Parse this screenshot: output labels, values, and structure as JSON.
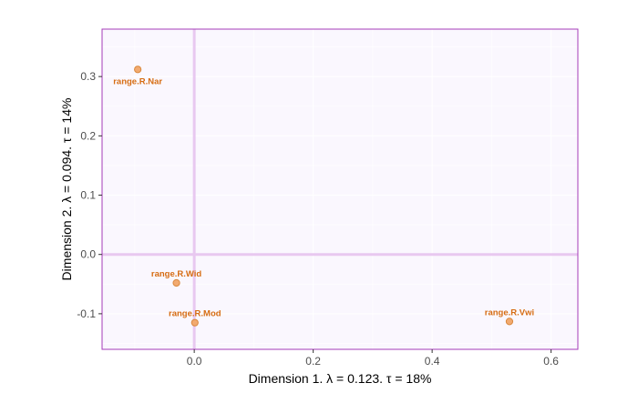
{
  "chart_data": {
    "type": "scatter",
    "xlabel": "Dimension 1.   λ = 0.123.  τ = 18%",
    "ylabel": "Dimension 2.   λ = 0.094.  τ = 14%",
    "xlim": [
      -0.155,
      0.645
    ],
    "ylim": [
      -0.16,
      0.38
    ],
    "x_ticks": [
      0.0,
      0.2,
      0.4,
      0.6
    ],
    "x_tick_labels": [
      "0.0",
      "0.2",
      "0.4",
      "0.6"
    ],
    "y_ticks": [
      -0.1,
      0.0,
      0.1,
      0.2,
      0.3
    ],
    "y_tick_labels": [
      "-0.1",
      "0.0",
      "0.1",
      "0.2",
      "0.3"
    ],
    "grid": true,
    "reference_lines": {
      "x": 0,
      "y": 0
    },
    "points": [
      {
        "label": "range.R.Nar",
        "x": -0.095,
        "y": 0.312
      },
      {
        "label": "range.R.Wid",
        "x": -0.03,
        "y": -0.048
      },
      {
        "label": "range.R.Mod",
        "x": 0.001,
        "y": -0.115
      },
      {
        "label": "range.R.Vwi",
        "x": 0.53,
        "y": -0.113
      }
    ],
    "colors": {
      "panel_background": "#faf7fe",
      "panel_border": "#a43bb8",
      "grid": "#ffffff",
      "reference_line": "#e8c8f0",
      "point_fill": "#f2aa70",
      "point_stroke": "#d9883d",
      "label": "#d66c12"
    }
  }
}
